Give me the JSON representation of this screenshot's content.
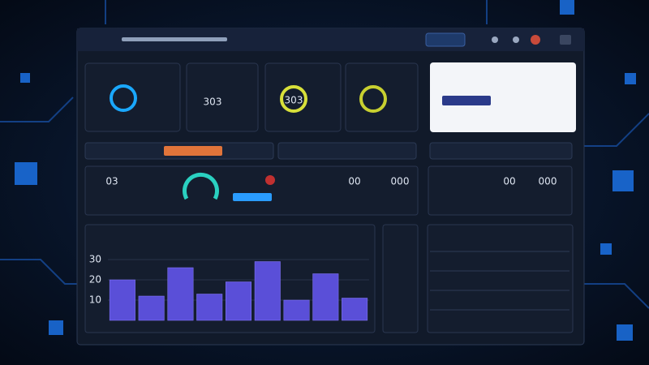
{
  "card_values": [
    "303",
    "303"
  ],
  "row_values": [
    "03",
    "00",
    "000"
  ],
  "side_values": [
    "00",
    "000"
  ],
  "chart_data": {
    "type": "bar",
    "values": [
      20,
      12,
      26,
      13,
      19,
      29,
      10,
      23,
      11
    ],
    "color": "#5a4fd8",
    "ylim": [
      0,
      40
    ],
    "yticks": [
      10,
      20,
      30
    ],
    "grid": true
  }
}
